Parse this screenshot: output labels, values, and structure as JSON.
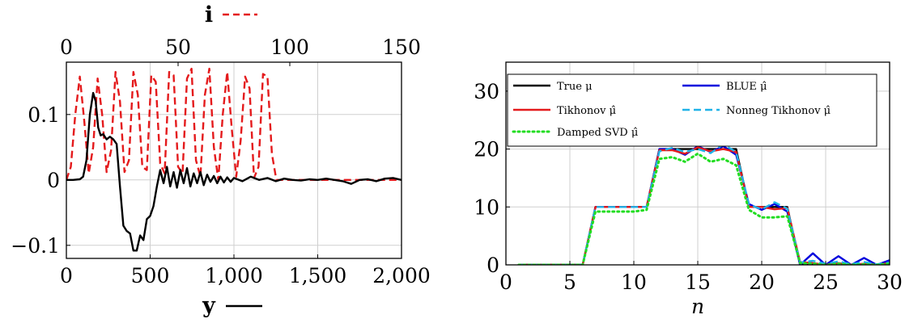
{
  "chart_data": [
    {
      "type": "line",
      "title": "",
      "top_axis": {
        "label": "i",
        "range": [
          0,
          150
        ],
        "ticks": [
          "0",
          "50",
          "100",
          "150"
        ]
      },
      "bottom_axis": {
        "label": "y",
        "range": [
          0,
          2000
        ],
        "ticks": [
          "0",
          "500",
          "1,000",
          "1,500",
          "2,000"
        ]
      },
      "ylim": [
        -0.12,
        0.18
      ],
      "yticks": [
        "−0.1",
        "0",
        "0.1"
      ],
      "grid": true,
      "series": [
        {
          "name": "i",
          "axis": "top",
          "color": "#e41a1c",
          "style": "dashed",
          "x": [
            0,
            2,
            4,
            6,
            8,
            10,
            12,
            14,
            16,
            18,
            20,
            22,
            24,
            26,
            28,
            30,
            32,
            34,
            36,
            38,
            40,
            42,
            44,
            46,
            48,
            50,
            52,
            54,
            56,
            58,
            60,
            62,
            64,
            66,
            68,
            70,
            72,
            74,
            76,
            78,
            80,
            82,
            84,
            86,
            88,
            90,
            92,
            94,
            96,
            98,
            100,
            105,
            110,
            115,
            120,
            125,
            130,
            135,
            140,
            145,
            150
          ],
          "y": [
            0,
            0.02,
            0.1,
            0.158,
            0.09,
            0.01,
            0.05,
            0.155,
            0.1,
            0.012,
            0.045,
            0.165,
            0.12,
            0.012,
            0.03,
            0.165,
            0.13,
            0.02,
            0.015,
            0.16,
            0.15,
            0.025,
            0.01,
            0.165,
            0.16,
            0.02,
            0.01,
            0.155,
            0.17,
            0.03,
            0.005,
            0.13,
            0.17,
            0.05,
            0,
            0.1,
            0.165,
            0.08,
            0.005,
            0.06,
            0.158,
            0.14,
            0.003,
            0.02,
            0.162,
            0.158,
            0.04,
            0,
            0,
            0,
            0,
            0,
            0,
            0,
            0,
            0,
            0,
            0,
            0,
            0,
            0
          ]
        },
        {
          "name": "y",
          "axis": "bottom",
          "color": "#000000",
          "style": "solid",
          "x": [
            0,
            40,
            80,
            100,
            120,
            140,
            160,
            175,
            190,
            205,
            220,
            240,
            260,
            280,
            300,
            320,
            340,
            360,
            380,
            400,
            420,
            440,
            460,
            480,
            500,
            520,
            540,
            560,
            580,
            600,
            620,
            640,
            660,
            680,
            700,
            720,
            740,
            760,
            780,
            800,
            820,
            840,
            860,
            880,
            900,
            920,
            940,
            960,
            980,
            1000,
            1050,
            1100,
            1150,
            1200,
            1250,
            1300,
            1350,
            1400,
            1450,
            1500,
            1550,
            1600,
            1650,
            1700,
            1750,
            1800,
            1850,
            1900,
            1950,
            2000
          ],
          "y": [
            0,
            0,
            0.001,
            0.005,
            0.03,
            0.1,
            0.133,
            0.12,
            0.08,
            0.068,
            0.07,
            0.062,
            0.066,
            0.062,
            0.055,
            -0.01,
            -0.07,
            -0.078,
            -0.082,
            -0.108,
            -0.108,
            -0.085,
            -0.092,
            -0.06,
            -0.055,
            -0.04,
            -0.01,
            0.015,
            -0.005,
            0.02,
            -0.01,
            0.012,
            -0.012,
            0.015,
            -0.005,
            0.018,
            -0.01,
            0.01,
            -0.005,
            0.012,
            -0.008,
            0.008,
            -0.003,
            0.006,
            -0.005,
            0.005,
            -0.004,
            0.004,
            -0.003,
            0.003,
            -0.002,
            0.005,
            0,
            0.003,
            -0.002,
            0.002,
            0,
            -0.001,
            0.001,
            0,
            0.002,
            0,
            -0.002,
            -0.006,
            0,
            0.001,
            -0.002,
            0.002,
            0.003,
            0
          ]
        }
      ]
    },
    {
      "type": "line",
      "title": "",
      "xlabel": "n",
      "ylabel": "",
      "xlim": [
        0,
        30
      ],
      "ylim": [
        0,
        35
      ],
      "xticks": [
        "0",
        "5",
        "10",
        "15",
        "20",
        "25",
        "30"
      ],
      "yticks": [
        "0",
        "10",
        "20",
        "30"
      ],
      "grid": true,
      "legend_placement": "top",
      "series": [
        {
          "name": "True μ",
          "color": "#000000",
          "style": "solid",
          "x": [
            1,
            2,
            3,
            4,
            5,
            6,
            7,
            8,
            9,
            10,
            11,
            12,
            13,
            14,
            15,
            16,
            17,
            18,
            19,
            20,
            21,
            22,
            23,
            24,
            25,
            26,
            27,
            28,
            29,
            30
          ],
          "y": [
            0,
            0,
            0,
            0,
            0,
            0,
            10,
            10,
            10,
            10,
            10,
            20,
            20,
            20,
            20,
            20,
            20,
            20,
            10,
            10,
            10,
            10,
            0,
            0,
            0,
            0,
            0,
            0,
            0,
            0
          ]
        },
        {
          "name": "BLUE μ̂",
          "color": "#0000dd",
          "style": "solid",
          "x": [
            1,
            2,
            3,
            4,
            5,
            6,
            7,
            8,
            9,
            10,
            11,
            12,
            13,
            14,
            15,
            16,
            17,
            18,
            19,
            20,
            21,
            22,
            23,
            24,
            25,
            26,
            27,
            28,
            29,
            30
          ],
          "y": [
            0,
            0,
            0,
            0,
            0,
            0,
            10,
            10,
            10,
            10,
            10,
            20,
            20,
            19,
            20.5,
            19.5,
            20.5,
            19,
            10.5,
            9.5,
            10.5,
            9.2,
            0,
            2,
            0,
            1.5,
            0,
            1.2,
            0,
            0.8
          ]
        },
        {
          "name": "Tikhonov μ̂",
          "color": "#e41a1c",
          "style": "solid",
          "x": [
            1,
            2,
            3,
            4,
            5,
            6,
            7,
            8,
            9,
            10,
            11,
            12,
            13,
            14,
            15,
            16,
            17,
            18,
            19,
            20,
            21,
            22,
            23,
            24,
            25,
            26,
            27,
            28,
            29,
            30
          ],
          "y": [
            0,
            0,
            0,
            0,
            0,
            0,
            10,
            10,
            10,
            10,
            10,
            19.8,
            19.8,
            19.2,
            20.3,
            19.6,
            20,
            19.5,
            10,
            10,
            9.6,
            9.8,
            0.5,
            0.3,
            0,
            0.3,
            0,
            0.2,
            0,
            0.3
          ]
        },
        {
          "name": "Nonneg Tikhonov μ̂",
          "color": "#1fb2e8",
          "style": "dashed",
          "x": [
            1,
            2,
            3,
            4,
            5,
            6,
            7,
            8,
            9,
            10,
            11,
            12,
            13,
            14,
            15,
            16,
            17,
            18,
            19,
            20,
            21,
            22,
            23,
            24,
            25,
            26,
            27,
            28,
            29,
            30
          ],
          "y": [
            0,
            0,
            0,
            0,
            0,
            0,
            10,
            10,
            10,
            10,
            10,
            19.6,
            20.2,
            19.5,
            20,
            19.3,
            20.8,
            19.5,
            10.4,
            9.6,
            10.8,
            9.7,
            0.4,
            0.7,
            0.2,
            0.6,
            0.1,
            0.5,
            0.1,
            0.4
          ]
        },
        {
          "name": "Damped SVD μ̂",
          "color": "#22dd22",
          "style": "dotted",
          "x": [
            1,
            2,
            3,
            4,
            5,
            6,
            7,
            8,
            9,
            10,
            11,
            12,
            13,
            14,
            15,
            16,
            17,
            18,
            19,
            20,
            21,
            22,
            23,
            24,
            25,
            26,
            27,
            28,
            29,
            30
          ],
          "y": [
            0,
            0,
            0,
            0,
            0,
            0,
            9.2,
            9.2,
            9.2,
            9.2,
            9.5,
            18.3,
            18.6,
            17.8,
            19.2,
            17.8,
            18.3,
            17.2,
            9.5,
            8.2,
            8.2,
            8.4,
            0.3,
            0.2,
            0,
            0.2,
            0,
            0.1,
            0,
            0.2
          ]
        }
      ]
    }
  ]
}
